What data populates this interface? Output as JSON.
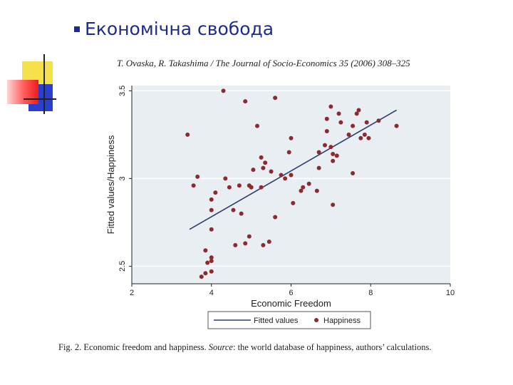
{
  "slide": {
    "heading": "Економічна свобода",
    "citation": "T. Ovaska, R. Takashima / The Journal of Socio-Economics 35 (2006) 308–325",
    "caption": {
      "prefix": "Fig. 2.  Economic freedom and happiness. ",
      "source_word": "Source",
      "suffix": ": the world database of happiness, authors’ calculations."
    }
  },
  "colors": {
    "accent": "#1f2a8f",
    "plot_background": "#e9eef3",
    "fitted_line": "#2c3e70",
    "points": "#8b2b2f"
  },
  "chart_data": {
    "type": "scatter",
    "xlabel": "Economic Freedom",
    "ylabel": "Fitted values/Happiness",
    "xlim": [
      2,
      10
    ],
    "ylim": [
      2.4,
      3.53
    ],
    "x_ticks": [
      2,
      4,
      6,
      8,
      10
    ],
    "y_ticks": [
      2.5,
      3,
      3.5
    ],
    "legend": [
      "Fitted values",
      "Happiness"
    ],
    "legend_position": "bottom",
    "fitted_line": {
      "name": "Fitted values",
      "x": [
        3.45,
        8.65
      ],
      "y": [
        2.71,
        3.39
      ]
    },
    "series": [
      {
        "name": "Happiness",
        "points": [
          [
            3.4,
            3.25
          ],
          [
            3.55,
            2.96
          ],
          [
            3.65,
            3.01
          ],
          [
            3.75,
            2.44
          ],
          [
            3.85,
            2.46
          ],
          [
            3.85,
            2.59
          ],
          [
            3.9,
            2.52
          ],
          [
            4.0,
            2.47
          ],
          [
            4.0,
            2.55
          ],
          [
            4.0,
            2.53
          ],
          [
            4.0,
            2.71
          ],
          [
            4.0,
            2.88
          ],
          [
            4.0,
            2.82
          ],
          [
            4.1,
            2.92
          ],
          [
            4.3,
            3.5
          ],
          [
            4.35,
            3.0
          ],
          [
            4.45,
            2.95
          ],
          [
            4.55,
            2.82
          ],
          [
            4.6,
            2.62
          ],
          [
            4.7,
            2.96
          ],
          [
            4.75,
            2.8
          ],
          [
            4.85,
            2.63
          ],
          [
            4.85,
            3.44
          ],
          [
            4.95,
            2.96
          ],
          [
            4.95,
            2.67
          ],
          [
            5.0,
            2.95
          ],
          [
            5.0,
            2.95
          ],
          [
            5.05,
            3.05
          ],
          [
            5.15,
            3.3
          ],
          [
            5.25,
            2.95
          ],
          [
            5.25,
            3.12
          ],
          [
            5.3,
            2.62
          ],
          [
            5.3,
            3.06
          ],
          [
            5.35,
            3.09
          ],
          [
            5.45,
            2.64
          ],
          [
            5.5,
            3.04
          ],
          [
            5.6,
            2.78
          ],
          [
            5.6,
            3.46
          ],
          [
            5.75,
            3.02
          ],
          [
            5.85,
            3.0
          ],
          [
            5.95,
            3.15
          ],
          [
            6.0,
            3.23
          ],
          [
            6.0,
            3.02
          ],
          [
            6.05,
            2.86
          ],
          [
            6.25,
            2.93
          ],
          [
            6.3,
            2.95
          ],
          [
            6.45,
            2.97
          ],
          [
            6.65,
            2.93
          ],
          [
            6.7,
            3.15
          ],
          [
            6.7,
            3.06
          ],
          [
            6.85,
            3.19
          ],
          [
            6.9,
            3.27
          ],
          [
            6.9,
            3.34
          ],
          [
            7.0,
            3.41
          ],
          [
            7.0,
            3.18
          ],
          [
            7.05,
            3.14
          ],
          [
            7.05,
            3.1
          ],
          [
            7.05,
            2.85
          ],
          [
            7.15,
            3.13
          ],
          [
            7.2,
            3.37
          ],
          [
            7.25,
            3.32
          ],
          [
            7.45,
            3.25
          ],
          [
            7.55,
            3.3
          ],
          [
            7.65,
            3.37
          ],
          [
            7.7,
            3.39
          ],
          [
            7.75,
            3.23
          ],
          [
            7.85,
            3.25
          ],
          [
            7.9,
            3.32
          ],
          [
            7.95,
            3.23
          ],
          [
            8.2,
            3.33
          ],
          [
            8.65,
            3.3
          ],
          [
            7.55,
            3.03
          ]
        ]
      }
    ]
  }
}
